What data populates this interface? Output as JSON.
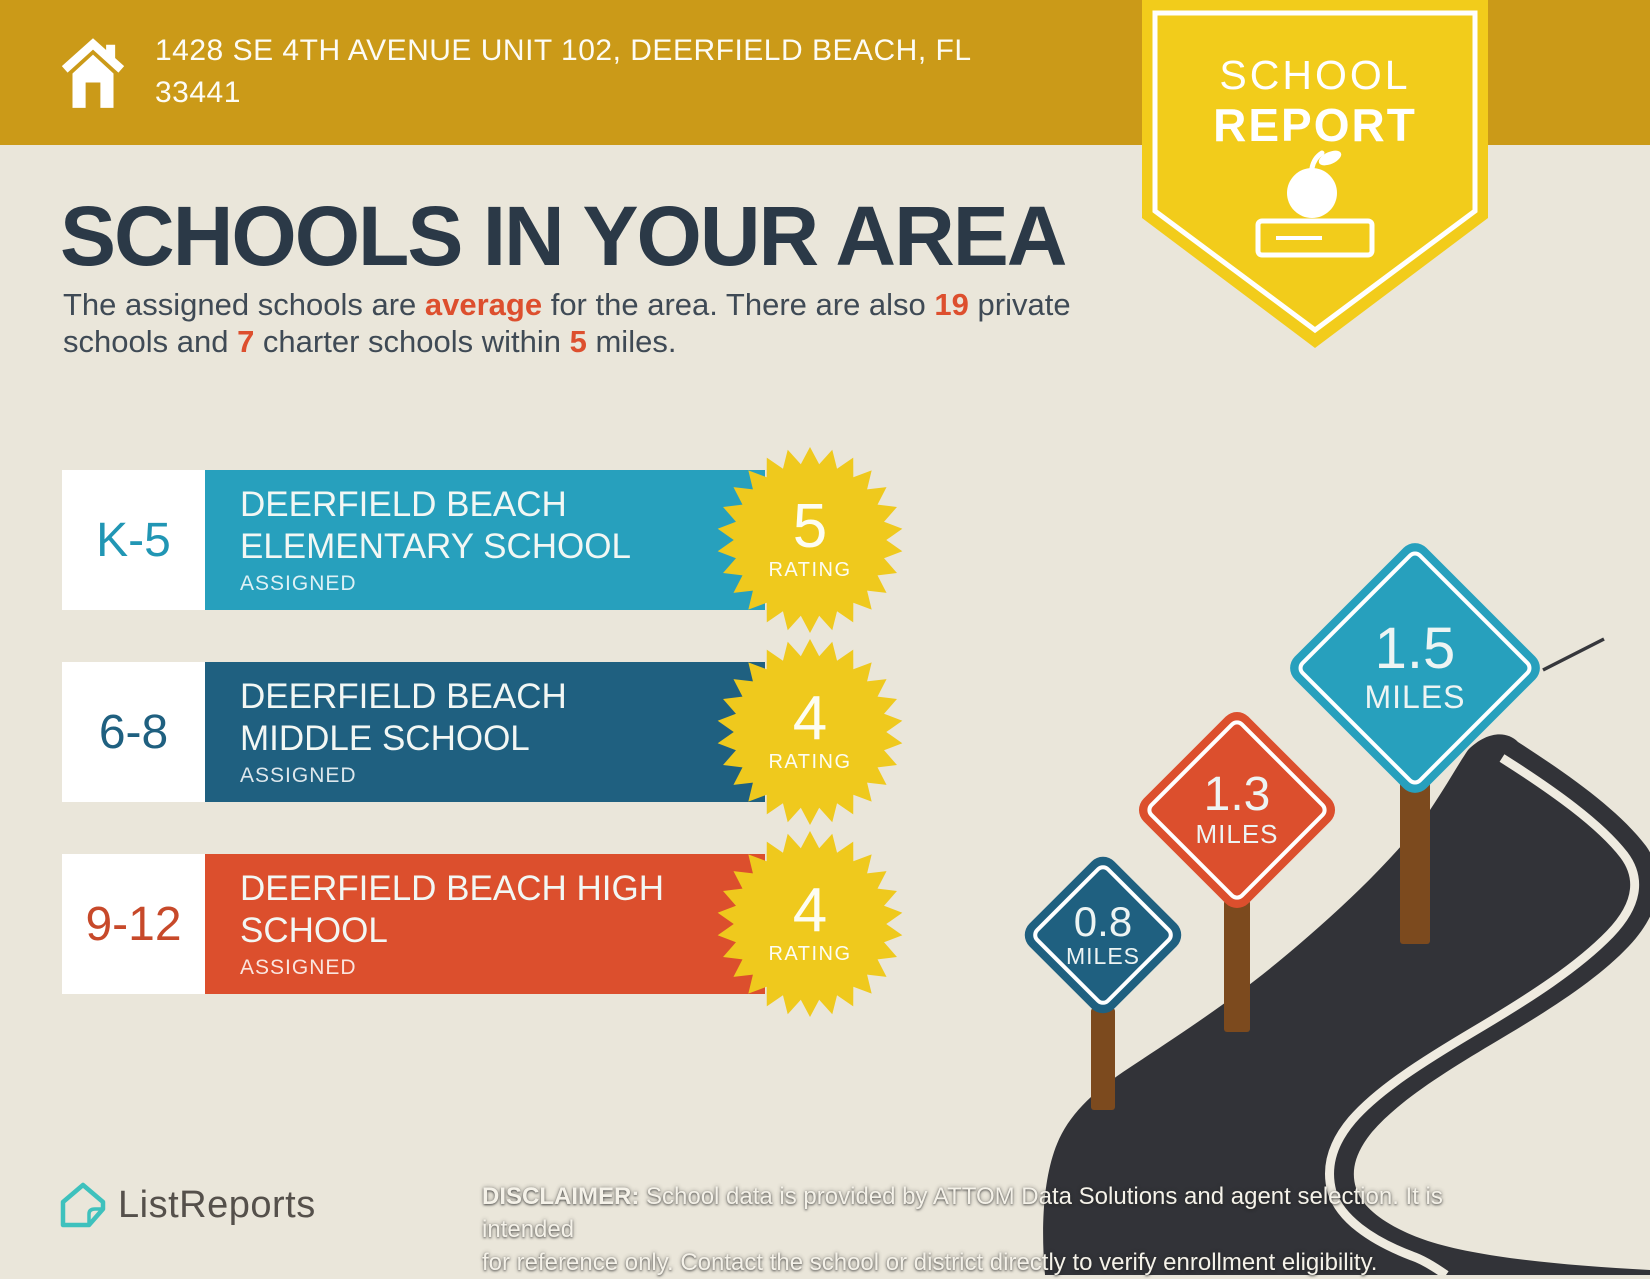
{
  "colors": {
    "background": "#EAE6DA",
    "banner_gold": "#CB9A18",
    "ribbon_yellow": "#F2CC1B",
    "headline_navy": "#2B3947",
    "accent_red": "#DD4F2E",
    "elementary_teal": "#27A0BD",
    "middle_blue": "#1F6080",
    "high_red": "#DC4F2D",
    "rating_yellow": "#EFC91D",
    "road_gray": "#323338",
    "post_brown": "#7C4A1E",
    "logo_teal": "#3EC1BD"
  },
  "header": {
    "address_lines": [
      "1428 SE 4TH AVENUE UNIT 102, DEERFIELD BEACH, FL",
      "33441"
    ]
  },
  "ribbon": {
    "line1": "SCHOOL",
    "line2": "REPORT"
  },
  "headline": "SCHOOLS IN YOUR AREA",
  "subtitle": {
    "segments": [
      {
        "t": "The assigned schools are "
      },
      {
        "t": "average",
        "hl": true
      },
      {
        "t": " for the area. There are also "
      },
      {
        "t": "19",
        "hl": true
      },
      {
        "t": " private schools and "
      },
      {
        "t": "7",
        "hl": true
      },
      {
        "t": " charter schools within "
      },
      {
        "t": "5",
        "hl": true
      },
      {
        "t": " miles."
      }
    ]
  },
  "schools": [
    {
      "grades": "K-5",
      "name_lines": [
        "DEERFIELD BEACH",
        "ELEMENTARY SCHOOL"
      ],
      "status": "ASSIGNED",
      "rating": "5",
      "rating_label": "RATING"
    },
    {
      "grades": "6-8",
      "name_lines": [
        "DEERFIELD BEACH",
        "MIDDLE SCHOOL"
      ],
      "status": "ASSIGNED",
      "rating": "4",
      "rating_label": "RATING"
    },
    {
      "grades": "9-12",
      "name_lines": [
        "DEERFIELD BEACH HIGH",
        "SCHOOL"
      ],
      "status": "ASSIGNED",
      "rating": "4",
      "rating_label": "RATING"
    }
  ],
  "signs": [
    {
      "distance": "0.8",
      "unit": "MILES"
    },
    {
      "distance": "1.3",
      "unit": "MILES"
    },
    {
      "distance": "1.5",
      "unit": "MILES"
    }
  ],
  "footer": {
    "brand": "ListReports",
    "disclaimer_label": "DISCLAIMER:",
    "disclaimer_line1": " School data is provided by ATTOM Data Solutions and agent selection. It is intended",
    "disclaimer_line2": "for reference only. Contact the school or district directly to verify enrollment eligibility."
  }
}
